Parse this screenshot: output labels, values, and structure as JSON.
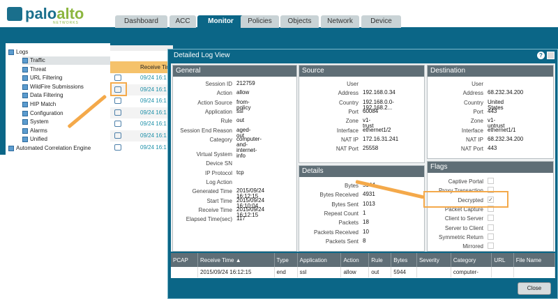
{
  "brand": {
    "name_a": "palo",
    "name_b": "alto",
    "sub": "NETWORKS"
  },
  "tabs": [
    "Dashboard",
    "ACC",
    "Monitor",
    "Policies",
    "Objects",
    "Network",
    "Device"
  ],
  "active_tab": "Monitor",
  "nav": {
    "root": "Logs",
    "items": [
      "Traffic",
      "Threat",
      "URL Filtering",
      "WildFire Submissions",
      "Data Filtering",
      "HIP Match",
      "Configuration",
      "System",
      "Alarms",
      "Unified"
    ],
    "second_root": "Automated Correlation Engine",
    "selected": "Traffic"
  },
  "log_list": {
    "header": "Receive Tim",
    "rows": [
      "09/24 16:1",
      "09/24 16:1",
      "09/24 16:1",
      "09/24 16:1",
      "09/24 16:1",
      "09/24 16:1",
      "09/24 16:1"
    ]
  },
  "modal": {
    "title": "Detailed Log View",
    "general": {
      "title": "General",
      "fields": [
        [
          "Session ID",
          "212759"
        ],
        [
          "Action",
          "allow"
        ],
        [
          "Action Source",
          "from-policy"
        ],
        [
          "Application",
          "ssl"
        ],
        [
          "Rule",
          "out"
        ],
        [
          "Session End Reason",
          "aged-out"
        ],
        [
          "Category",
          "computer-\nand-internet-info"
        ],
        [
          "Virtual System",
          ""
        ],
        [
          "Device SN",
          ""
        ],
        [
          "IP Protocol",
          "tcp"
        ],
        [
          "Log Action",
          ""
        ],
        [
          "Generated Time",
          "2015/09/24 16:12:15"
        ],
        [
          "Start Time",
          "2015/09/24 16:10:04"
        ],
        [
          "Receive Time",
          "2015/09/24 16:12:15"
        ],
        [
          "Elapsed Time(sec)",
          "117"
        ]
      ]
    },
    "source": {
      "title": "Source",
      "fields": [
        [
          "User",
          ""
        ],
        [
          "Address",
          "192.168.0.34"
        ],
        [
          "Country",
          "192.168.0.0-192.168.2..."
        ],
        [
          "Port",
          "60084"
        ],
        [
          "Zone",
          "v1-trust"
        ],
        [
          "Interface",
          "ethernet1/2"
        ],
        [
          "NAT IP",
          "172.16.31.241"
        ],
        [
          "NAT Port",
          "25558"
        ]
      ]
    },
    "details": {
      "title": "Details",
      "fields": [
        [
          "Bytes",
          "5944"
        ],
        [
          "Bytes Received",
          "4931"
        ],
        [
          "Bytes Sent",
          "1013"
        ],
        [
          "Repeat Count",
          "1"
        ],
        [
          "Packets",
          "18"
        ],
        [
          "Packets Received",
          "10"
        ],
        [
          "Packets Sent",
          "8"
        ]
      ]
    },
    "destination": {
      "title": "Destination",
      "fields": [
        [
          "User",
          ""
        ],
        [
          "Address",
          "68.232.34.200"
        ],
        [
          "Country",
          "United States"
        ],
        [
          "Port",
          "443"
        ],
        [
          "Zone",
          "v1-untrust"
        ],
        [
          "Interface",
          "ethernet1/1"
        ],
        [
          "NAT IP",
          "68.232.34.200"
        ],
        [
          "NAT Port",
          "443"
        ]
      ]
    },
    "flags": {
      "title": "Flags",
      "items": [
        [
          "Captive Portal",
          false
        ],
        [
          "Proxy Transaction",
          false
        ],
        [
          "Decrypted",
          true
        ],
        [
          "Packet Capture",
          false
        ],
        [
          "Client to Server",
          false
        ],
        [
          "Server to Client",
          false
        ],
        [
          "Symmetric Return",
          false
        ],
        [
          "Mirrored",
          false
        ]
      ]
    },
    "table": {
      "columns": [
        "PCAP",
        "Receive Time ▲",
        "Type",
        "Application",
        "Action",
        "Rule",
        "Bytes",
        "Severity",
        "Category",
        "URL",
        "File Name"
      ],
      "rows": [
        [
          "",
          "2015/09/24 16:12:15",
          "end",
          "ssl",
          "allow",
          "out",
          "5944",
          "",
          "computer-",
          "",
          ""
        ]
      ]
    },
    "close_label": "Close"
  },
  "colors": {
    "brand": "#0b6687",
    "header": "#5f6e76",
    "highlight": "#f4a94a"
  }
}
